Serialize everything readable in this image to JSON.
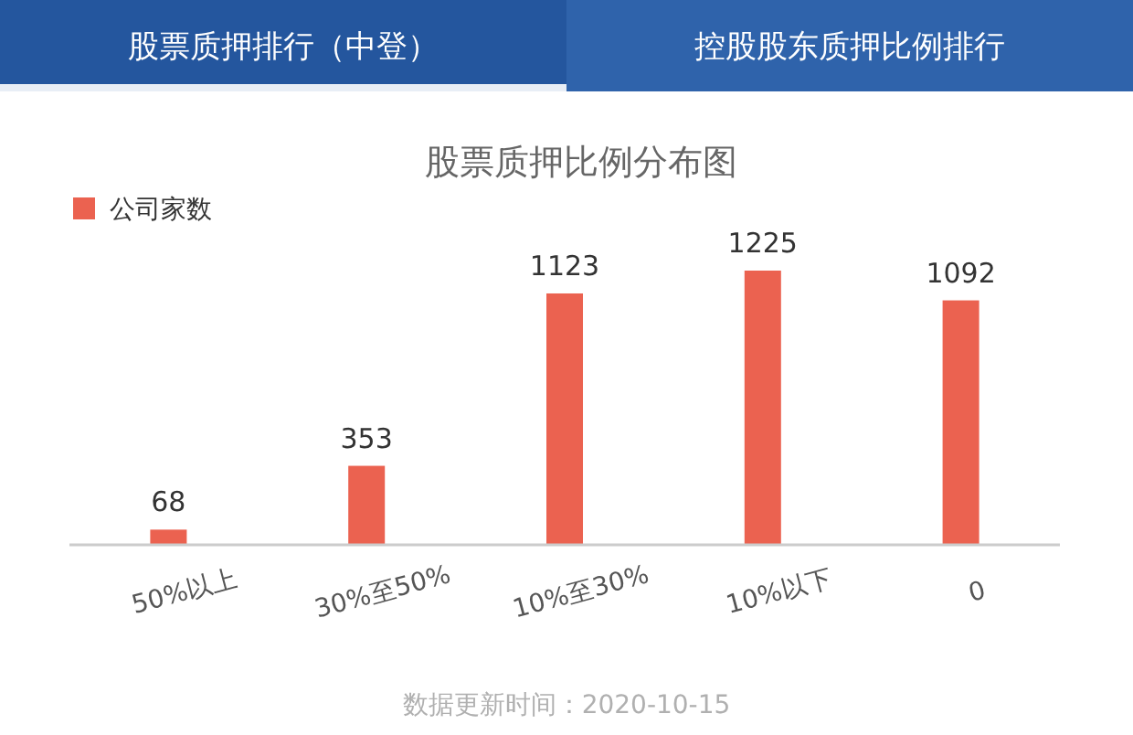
{
  "chart_data": {
    "type": "bar",
    "title": "股票质押比例分布图",
    "categories": [
      "50%以上",
      "30%至50%",
      "10%至30%",
      "10%以下",
      "0"
    ],
    "series": [
      {
        "name": "公司家数",
        "color": "#eb6250",
        "values": [
          68,
          353,
          1123,
          1225,
          1092
        ]
      }
    ],
    "data_labels": true,
    "legend": "top left",
    "annotations": [
      "股票质押排行（中登）",
      "控股股东质押比例排行",
      "数据更新时间：2020-10-15"
    ]
  }
}
